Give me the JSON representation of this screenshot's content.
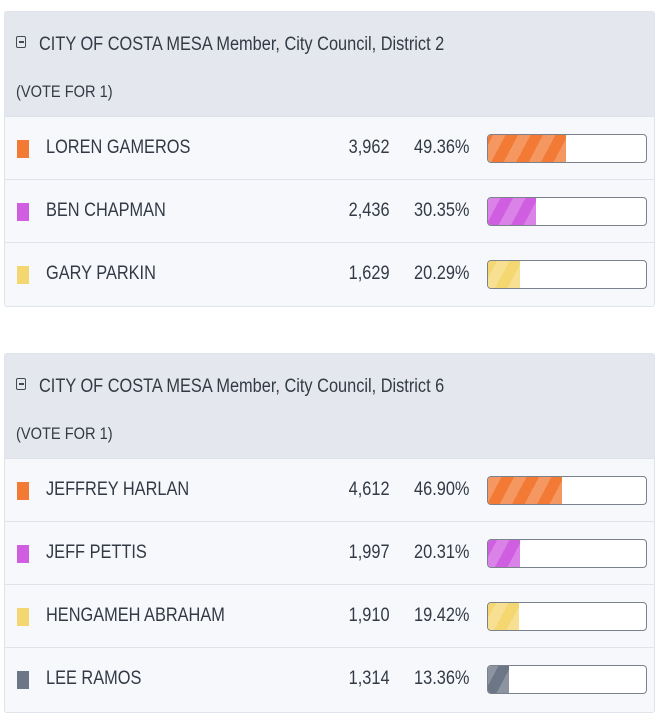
{
  "colors": {
    "orange": "#f27a34",
    "purple": "#cf5fe0",
    "yellow": "#f5d772",
    "slate": "#6c7686"
  },
  "contests": [
    {
      "title": "CITY OF COSTA MESA Member, City Council, District 2",
      "vote_for": "(VOTE FOR 1)",
      "candidates": [
        {
          "name": "LOREN GAMEROS",
          "votes": "3,962",
          "percent": "49.36%",
          "share": 0.4936,
          "color": "#f27a34"
        },
        {
          "name": "BEN CHAPMAN",
          "votes": "2,436",
          "percent": "30.35%",
          "share": 0.3035,
          "color": "#cf5fe0"
        },
        {
          "name": "GARY PARKIN",
          "votes": "1,629",
          "percent": "20.29%",
          "share": 0.2029,
          "color": "#f5d772"
        }
      ]
    },
    {
      "title": "CITY OF COSTA MESA Member, City Council, District 6",
      "vote_for": "(VOTE FOR 1)",
      "candidates": [
        {
          "name": "JEFFREY HARLAN",
          "votes": "4,612",
          "percent": "46.90%",
          "share": 0.469,
          "color": "#f27a34"
        },
        {
          "name": "JEFF PETTIS",
          "votes": "1,997",
          "percent": "20.31%",
          "share": 0.2031,
          "color": "#cf5fe0"
        },
        {
          "name": "HENGAMEH ABRAHAM",
          "votes": "1,910",
          "percent": "19.42%",
          "share": 0.1942,
          "color": "#f5d772"
        },
        {
          "name": "LEE RAMOS",
          "votes": "1,314",
          "percent": "13.36%",
          "share": 0.1336,
          "color": "#6c7686"
        }
      ]
    }
  ]
}
